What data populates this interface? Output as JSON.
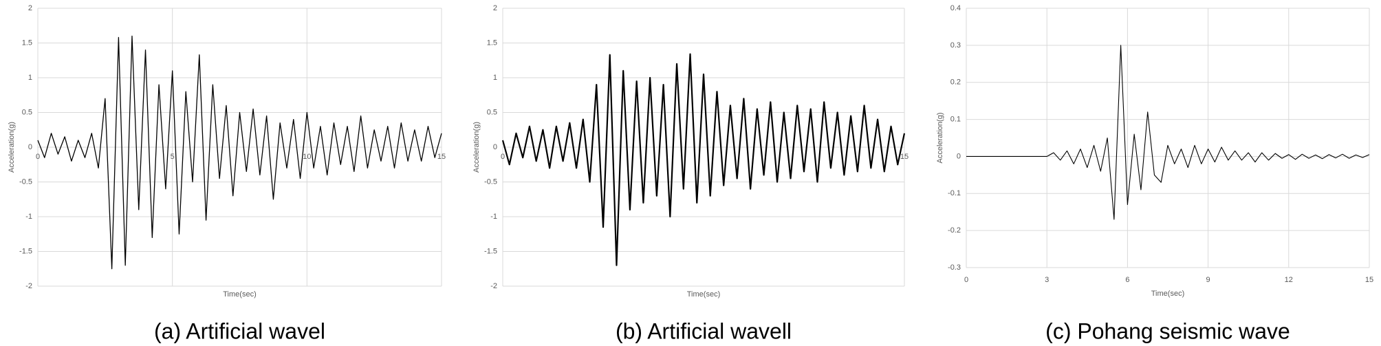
{
  "chart_data": [
    {
      "type": "line",
      "caption": "(a) Artificial wavel",
      "x_label": "Time(sec)",
      "y_label": "Acceleration(g)",
      "xlim": [
        0,
        15
      ],
      "xticks": [
        0,
        5,
        10,
        15
      ],
      "ylim": [
        -2,
        2
      ],
      "yticks": [
        -2,
        -1.5,
        -1,
        -0.5,
        0,
        0.5,
        1,
        1.5,
        2
      ],
      "grid": true,
      "x": [
        0,
        0.25,
        0.5,
        0.75,
        1,
        1.25,
        1.5,
        1.75,
        2,
        2.25,
        2.5,
        2.75,
        3,
        3.25,
        3.5,
        3.75,
        4,
        4.25,
        4.5,
        4.75,
        5,
        5.25,
        5.5,
        5.75,
        6,
        6.25,
        6.5,
        6.75,
        7,
        7.25,
        7.5,
        7.75,
        8,
        8.25,
        8.5,
        8.75,
        9,
        9.25,
        9.5,
        9.75,
        10,
        10.25,
        10.5,
        10.75,
        11,
        11.25,
        11.5,
        11.75,
        12,
        12.25,
        12.5,
        12.75,
        13,
        13.25,
        13.5,
        13.75,
        14,
        14.25,
        14.5,
        14.75,
        15
      ],
      "series": [
        {
          "color": "#000000",
          "values": [
            0.1,
            -0.15,
            0.2,
            -0.1,
            0.15,
            -0.2,
            0.1,
            -0.15,
            0.2,
            -0.3,
            0.7,
            -1.75,
            1.58,
            -1.7,
            1.6,
            -0.9,
            1.4,
            -1.3,
            0.9,
            -0.6,
            1.1,
            -1.25,
            0.8,
            -0.5,
            1.33,
            -1.05,
            0.9,
            -0.45,
            0.6,
            -0.7,
            0.5,
            -0.35,
            0.55,
            -0.4,
            0.45,
            -0.75,
            0.35,
            -0.3,
            0.4,
            -0.45,
            0.5,
            -0.3,
            0.3,
            -0.4,
            0.35,
            -0.25,
            0.3,
            -0.35,
            0.45,
            -0.3,
            0.25,
            -0.2,
            0.3,
            -0.3,
            0.35,
            -0.2,
            0.25,
            -0.2,
            0.3,
            -0.15,
            0.2
          ]
        }
      ]
    },
    {
      "type": "line",
      "caption": "(b) Artificial wavell",
      "x_label": "Time(sec)",
      "y_label": "Acceleration(g)",
      "xlim": [
        0,
        15
      ],
      "xticks": [
        0,
        15
      ],
      "ylim": [
        -2,
        2
      ],
      "yticks": [
        -2,
        -1.5,
        -1,
        -0.5,
        0,
        0.5,
        1,
        1.5,
        2
      ],
      "grid": true,
      "x": [
        0,
        0.25,
        0.5,
        0.75,
        1,
        1.25,
        1.5,
        1.75,
        2,
        2.25,
        2.5,
        2.75,
        3,
        3.25,
        3.5,
        3.75,
        4,
        4.25,
        4.5,
        4.75,
        5,
        5.25,
        5.5,
        5.75,
        6,
        6.25,
        6.5,
        6.75,
        7,
        7.25,
        7.5,
        7.75,
        8,
        8.25,
        8.5,
        8.75,
        9,
        9.25,
        9.5,
        9.75,
        10,
        10.25,
        10.5,
        10.75,
        11,
        11.25,
        11.5,
        11.75,
        12,
        12.25,
        12.5,
        12.75,
        13,
        13.25,
        13.5,
        13.75,
        14,
        14.25,
        14.5,
        14.75,
        15
      ],
      "series": [
        {
          "color": "#000000",
          "values": [
            0.1,
            -0.25,
            0.2,
            -0.15,
            0.3,
            -0.2,
            0.25,
            -0.3,
            0.3,
            -0.2,
            0.35,
            -0.3,
            0.4,
            -0.5,
            0.9,
            -1.15,
            1.33,
            -1.7,
            1.1,
            -0.9,
            0.95,
            -0.8,
            1.0,
            -0.7,
            0.9,
            -1.0,
            1.2,
            -0.6,
            1.34,
            -0.8,
            1.05,
            -0.7,
            0.8,
            -0.55,
            0.6,
            -0.45,
            0.7,
            -0.6,
            0.55,
            -0.4,
            0.65,
            -0.5,
            0.5,
            -0.45,
            0.6,
            -0.35,
            0.55,
            -0.5,
            0.65,
            -0.3,
            0.5,
            -0.4,
            0.45,
            -0.35,
            0.6,
            -0.3,
            0.4,
            -0.35,
            0.3,
            -0.25,
            0.2
          ]
        }
      ]
    },
    {
      "type": "line",
      "caption": "(c) Pohang seismic wave",
      "x_label": "Time(sec)",
      "y_label": "Acceleration(g)",
      "xlim": [
        0,
        15
      ],
      "xticks": [
        0,
        3,
        6,
        9,
        12,
        15
      ],
      "ylim": [
        -0.3,
        0.4
      ],
      "yticks": [
        -0.3,
        -0.2,
        -0.1,
        0,
        0.1,
        0.2,
        0.3,
        0.4
      ],
      "grid": true,
      "x": [
        0,
        0.25,
        0.5,
        0.75,
        1,
        1.25,
        1.5,
        1.75,
        2,
        2.25,
        2.5,
        2.75,
        3,
        3.25,
        3.5,
        3.75,
        4,
        4.25,
        4.5,
        4.75,
        5,
        5.25,
        5.5,
        5.75,
        6,
        6.25,
        6.5,
        6.75,
        7,
        7.25,
        7.5,
        7.75,
        8,
        8.25,
        8.5,
        8.75,
        9,
        9.25,
        9.5,
        9.75,
        10,
        10.25,
        10.5,
        10.75,
        11,
        11.25,
        11.5,
        11.75,
        12,
        12.25,
        12.5,
        12.75,
        13,
        13.25,
        13.5,
        13.75,
        14,
        14.25,
        14.5,
        14.75,
        15
      ],
      "series": [
        {
          "color": "#000000",
          "values": [
            0,
            0,
            0,
            0,
            0,
            0,
            0,
            0,
            0,
            0,
            0,
            0,
            0,
            0.01,
            -0.01,
            0.015,
            -0.02,
            0.02,
            -0.03,
            0.03,
            -0.04,
            0.05,
            -0.17,
            0.3,
            -0.13,
            0.06,
            -0.09,
            0.12,
            -0.05,
            -0.07,
            0.03,
            -0.02,
            0.02,
            -0.03,
            0.03,
            -0.02,
            0.02,
            -0.015,
            0.025,
            -0.01,
            0.015,
            -0.01,
            0.01,
            -0.015,
            0.01,
            -0.01,
            0.008,
            -0.005,
            0.005,
            -0.008,
            0.006,
            -0.005,
            0.004,
            -0.006,
            0.005,
            -0.004,
            0.006,
            -0.005,
            0.004,
            -0.003,
            0.005
          ]
        }
      ]
    }
  ]
}
